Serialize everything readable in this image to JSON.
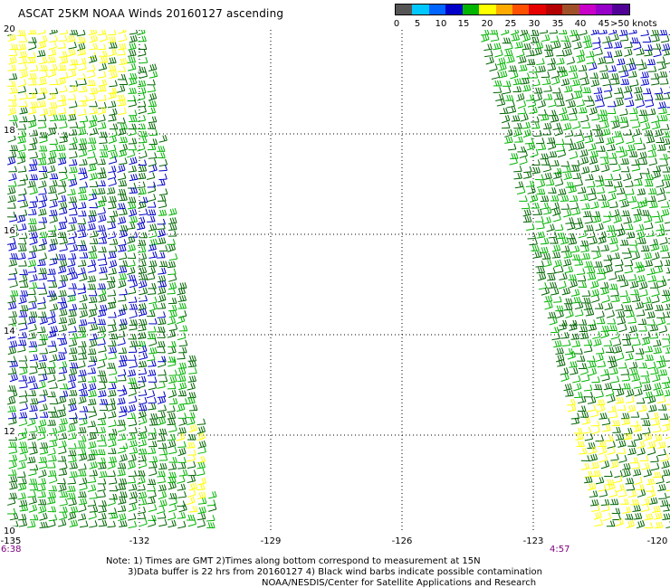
{
  "title": "ASCAT 25KM NOAA Winds 20160127 ascending",
  "legend": {
    "colors": [
      "#555555",
      "#00c8ff",
      "#0064ff",
      "#0000c8",
      "#00b400",
      "#ffff00",
      "#ffaa00",
      "#ff5000",
      "#e60000",
      "#b40000",
      "#a05028",
      "#c800c8",
      "#9600c8",
      "#500096"
    ],
    "labels": [
      "0",
      "5",
      "10",
      "15",
      "20",
      "25",
      "30",
      "35",
      "40",
      "45",
      ">50 knots"
    ]
  },
  "axes": {
    "y_labels": [
      "20",
      "18",
      "16",
      "14",
      "12",
      "10"
    ],
    "x_labels": [
      "-135",
      "-132",
      "-129",
      "-126",
      "-123",
      "-120"
    ]
  },
  "swath_times": {
    "left": "6:38",
    "right": "4:57"
  },
  "notes": [
    "Note: 1) Times are GMT 2)Times along bottom correspond to measurement at 15N",
    "3)Data buffer is 22 hrs from 20160127 4) Black wind barbs indicate possible contamination",
    "NOAA/NESDIS/Center for Satellite Applications and Research"
  ]
}
